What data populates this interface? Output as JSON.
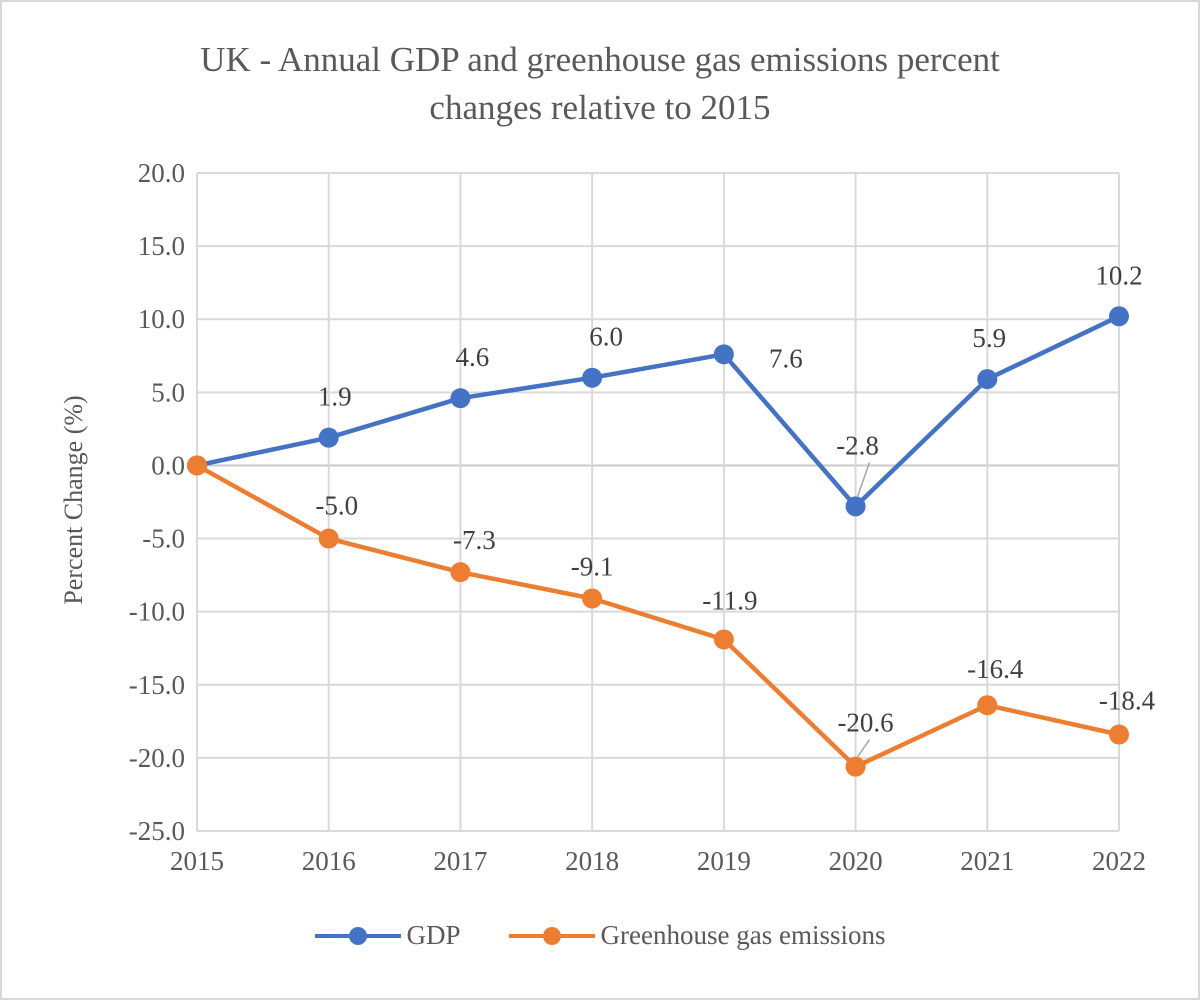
{
  "chart_data": {
    "type": "line",
    "title_line1": "UK - Annual GDP and greenhouse gas emissions percent",
    "title_line2": "changes relative to 2015",
    "ylabel": "Percent Change (%)",
    "xlabel": "",
    "categories": [
      "2015",
      "2016",
      "2017",
      "2018",
      "2019",
      "2020",
      "2021",
      "2022"
    ],
    "ylim": [
      -25,
      20
    ],
    "ytick_step": 5,
    "grid": true,
    "legend_position": "bottom",
    "series": [
      {
        "name": "GDP",
        "color": "#4472c4",
        "values": [
          0,
          1.9,
          4.6,
          6.0,
          7.6,
          -2.8,
          5.9,
          10.2
        ],
        "labels": [
          "",
          "1.9",
          "4.6",
          "6.0",
          "7.6",
          "-2.8",
          "5.9",
          "10.2"
        ]
      },
      {
        "name": "Greenhouse gas emissions",
        "color": "#ed7d31",
        "values": [
          0,
          -5.0,
          -7.3,
          -9.1,
          -11.9,
          -20.6,
          -16.4,
          -18.4
        ],
        "labels": [
          "",
          "-5.0",
          "-7.3",
          "-9.1",
          "-11.9",
          "-20.6",
          "-16.4",
          "-18.4"
        ]
      }
    ]
  }
}
